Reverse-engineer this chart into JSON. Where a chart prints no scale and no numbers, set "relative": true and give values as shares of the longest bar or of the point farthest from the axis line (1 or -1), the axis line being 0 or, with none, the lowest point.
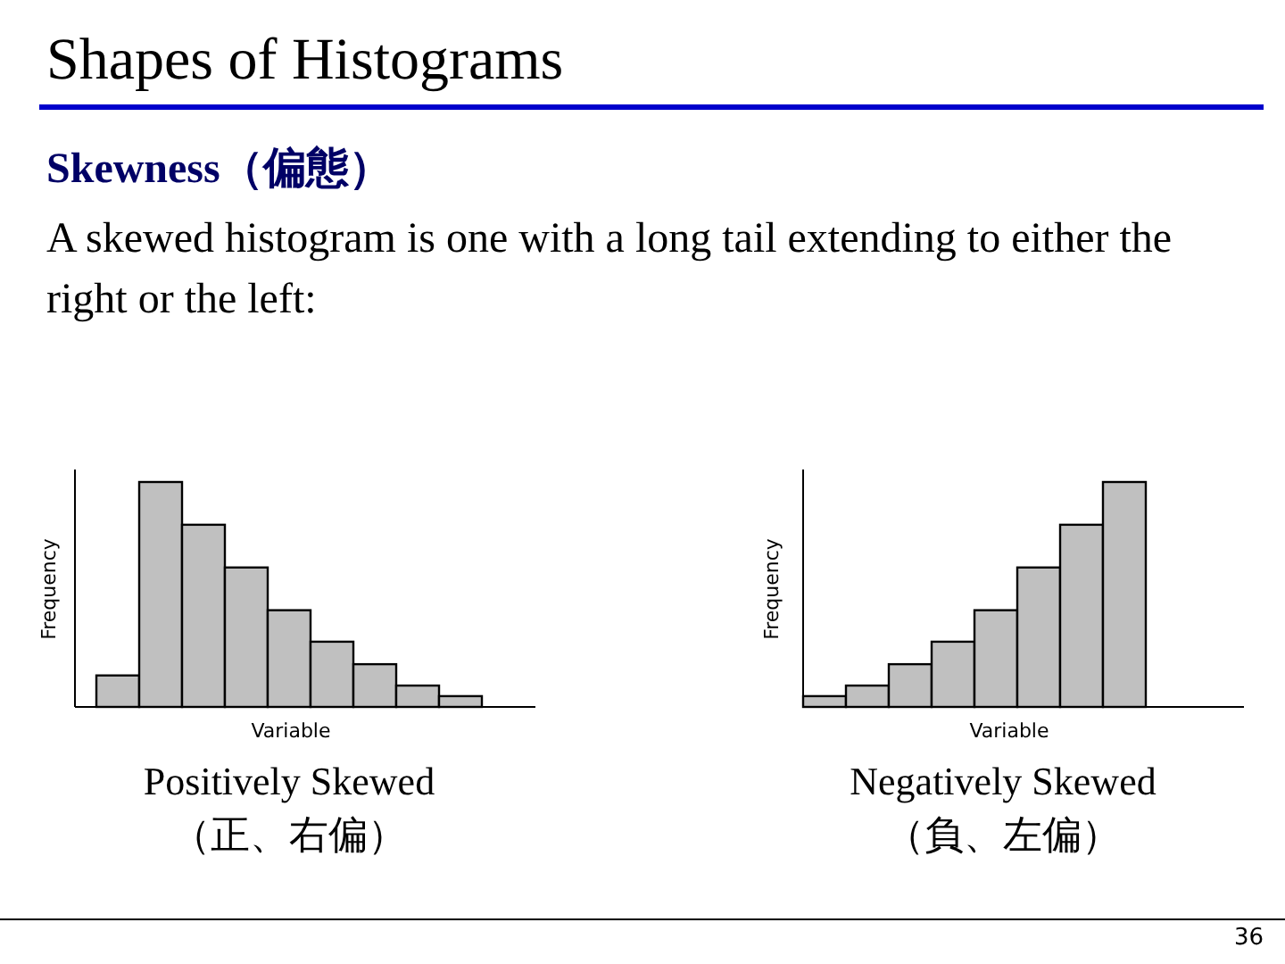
{
  "chart_data": [
    {
      "type": "bar",
      "title": "Shapes of Histograms",
      "subtitle": "Skewness（偏態）",
      "annotations": [
        "A skewed histogram is one with a long tail extending to either the right or the left:",
        "Positively Skewed",
        "（正、右偏）"
      ],
      "relative": true,
      "categories": [
        null,
        null,
        null,
        null,
        null,
        null,
        null,
        null,
        null
      ],
      "values": [
        0.14,
        1,
        0.81,
        0.62,
        0.43,
        0.29,
        0.19,
        0.095,
        0.048
      ],
      "color": "#c0c0c0",
      "xlabel": "Variable",
      "ylabel": "Frequency"
    },
    {
      "type": "bar",
      "annotations": [
        "Negatively Skewed",
        "（負、左偏）",
        "36"
      ],
      "relative": true,
      "categories": [
        null,
        null,
        null,
        null,
        null,
        null,
        null,
        null
      ],
      "values": [
        0.048,
        0.095,
        0.19,
        0.29,
        0.43,
        0.62,
        0.81,
        1
      ],
      "color": "#c0c0c0",
      "xlabel": "Variable",
      "ylabel": "Frequency"
    }
  ]
}
